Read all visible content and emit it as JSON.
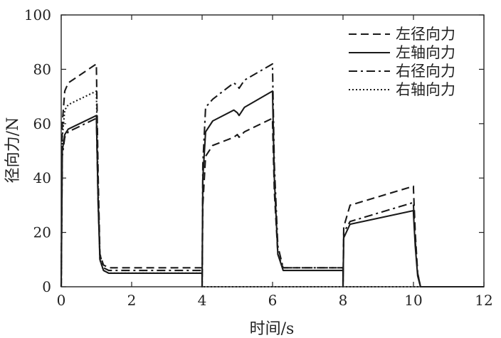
{
  "chart_data": {
    "type": "line",
    "title": "",
    "xlabel": "时间/s",
    "ylabel": "径向力/N",
    "xlim": [
      0,
      12
    ],
    "ylim": [
      0,
      100
    ],
    "xticks": [
      "0",
      "2",
      "4",
      "6",
      "8",
      "10",
      "12"
    ],
    "yticks": [
      "0",
      "20",
      "40",
      "60",
      "80",
      "100"
    ],
    "grid": false,
    "legend_position": "top-right",
    "series": [
      {
        "name": "左径向力",
        "style": "dashed",
        "color": "#1a1a1a",
        "points": [
          [
            0,
            0
          ],
          [
            0.03,
            60
          ],
          [
            0.1,
            72
          ],
          [
            0.2,
            75
          ],
          [
            1.0,
            82
          ],
          [
            1.0,
            80
          ],
          [
            1.05,
            40
          ],
          [
            1.1,
            12
          ],
          [
            1.2,
            8
          ],
          [
            1.35,
            7
          ],
          [
            4.0,
            7
          ],
          [
            4.0,
            0
          ],
          [
            4.02,
            30
          ],
          [
            4.1,
            48
          ],
          [
            4.3,
            52
          ],
          [
            4.9,
            55
          ],
          [
            5.0,
            56
          ],
          [
            5.05,
            55
          ],
          [
            5.2,
            57
          ],
          [
            6.0,
            62
          ],
          [
            6.0,
            60
          ],
          [
            6.05,
            35
          ],
          [
            6.15,
            12
          ],
          [
            6.3,
            7
          ],
          [
            8.0,
            7
          ],
          [
            8.0,
            0
          ],
          [
            8.02,
            22
          ],
          [
            8.2,
            30
          ],
          [
            10.0,
            37
          ],
          [
            10.0,
            36
          ],
          [
            10.05,
            20
          ],
          [
            10.12,
            5
          ],
          [
            10.2,
            0
          ],
          [
            12,
            0
          ]
        ]
      },
      {
        "name": "左轴向力",
        "style": "solid",
        "color": "#1a1a1a",
        "points": [
          [
            0,
            0
          ],
          [
            0.03,
            50
          ],
          [
            0.1,
            56
          ],
          [
            0.2,
            58
          ],
          [
            1.0,
            63
          ],
          [
            1.0,
            62
          ],
          [
            1.05,
            30
          ],
          [
            1.1,
            10
          ],
          [
            1.2,
            6
          ],
          [
            1.35,
            5
          ],
          [
            4.0,
            5
          ],
          [
            4.0,
            0
          ],
          [
            4.02,
            40
          ],
          [
            4.1,
            57
          ],
          [
            4.3,
            61
          ],
          [
            4.9,
            65
          ],
          [
            5.0,
            64
          ],
          [
            5.05,
            63
          ],
          [
            5.2,
            66
          ],
          [
            6.0,
            72
          ],
          [
            6.0,
            71
          ],
          [
            6.05,
            40
          ],
          [
            6.15,
            12
          ],
          [
            6.3,
            6
          ],
          [
            8.0,
            6
          ],
          [
            8.0,
            0
          ],
          [
            8.02,
            18
          ],
          [
            8.2,
            23
          ],
          [
            10.0,
            28
          ],
          [
            10.0,
            27
          ],
          [
            10.05,
            15
          ],
          [
            10.12,
            4
          ],
          [
            10.2,
            0
          ],
          [
            12,
            0
          ]
        ]
      },
      {
        "name": "右径向力",
        "style": "dashdot",
        "color": "#1a1a1a",
        "points": [
          [
            0,
            0
          ],
          [
            0.03,
            48
          ],
          [
            0.1,
            55
          ],
          [
            0.2,
            57
          ],
          [
            1.0,
            62
          ],
          [
            1.0,
            61
          ],
          [
            1.05,
            30
          ],
          [
            1.1,
            12
          ],
          [
            1.2,
            7
          ],
          [
            1.35,
            6
          ],
          [
            4.0,
            6
          ],
          [
            4.0,
            0
          ],
          [
            4.02,
            45
          ],
          [
            4.1,
            66
          ],
          [
            4.3,
            69
          ],
          [
            4.9,
            75
          ],
          [
            5.0,
            74
          ],
          [
            5.05,
            73
          ],
          [
            5.2,
            76
          ],
          [
            6.0,
            82
          ],
          [
            6.0,
            80
          ],
          [
            6.05,
            45
          ],
          [
            6.15,
            15
          ],
          [
            6.3,
            7
          ],
          [
            8.0,
            7
          ],
          [
            8.0,
            0
          ],
          [
            8.02,
            20
          ],
          [
            8.2,
            24
          ],
          [
            10.0,
            31
          ],
          [
            10.0,
            30
          ],
          [
            10.05,
            17
          ],
          [
            10.12,
            5
          ],
          [
            10.2,
            0
          ],
          [
            12,
            0
          ]
        ]
      },
      {
        "name": "右轴向力",
        "style": "dotted",
        "color": "#1a1a1a",
        "points": [
          [
            0,
            0
          ],
          [
            0.03,
            55
          ],
          [
            0.1,
            65
          ],
          [
            0.2,
            67
          ],
          [
            1.0,
            72
          ],
          [
            1.0,
            71
          ],
          [
            1.05,
            35
          ],
          [
            1.1,
            10
          ],
          [
            1.2,
            6
          ],
          [
            1.35,
            5
          ],
          [
            4.0,
            5
          ],
          [
            4.0,
            0
          ],
          [
            12,
            0
          ]
        ]
      }
    ]
  }
}
